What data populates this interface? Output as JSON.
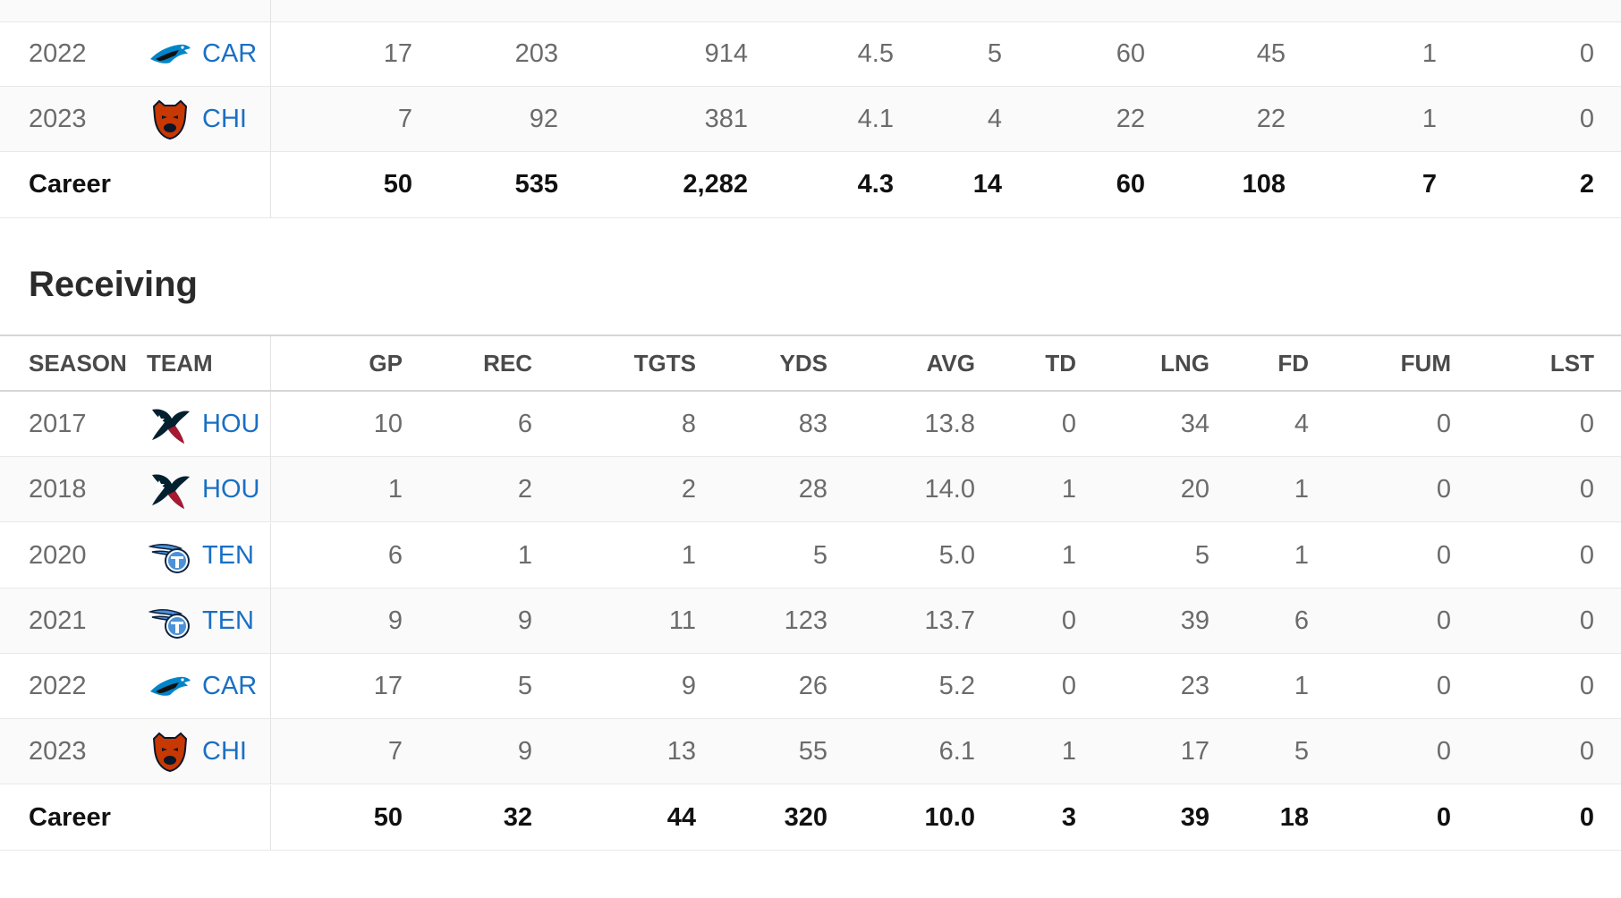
{
  "rushing": {
    "rows": [
      {
        "season": "2022",
        "team": "CAR",
        "logo": "panthers-logo",
        "stats": [
          "17",
          "203",
          "914",
          "4.5",
          "5",
          "60",
          "45",
          "1",
          "0"
        ]
      },
      {
        "season": "2023",
        "team": "CHI",
        "logo": "bears-logo",
        "stats": [
          "7",
          "92",
          "381",
          "4.1",
          "4",
          "22",
          "22",
          "1",
          "0"
        ]
      }
    ],
    "career": {
      "label": "Career",
      "stats": [
        "50",
        "535",
        "2,282",
        "4.3",
        "14",
        "60",
        "108",
        "7",
        "2"
      ]
    }
  },
  "receiving": {
    "title": "Receiving",
    "headers": {
      "season": "SEASON",
      "team": "TEAM",
      "cols": [
        "GP",
        "REC",
        "TGTS",
        "YDS",
        "AVG",
        "TD",
        "LNG",
        "FD",
        "FUM",
        "LST"
      ]
    },
    "rows": [
      {
        "season": "2017",
        "team": "HOU",
        "logo": "texans-logo",
        "stats": [
          "10",
          "6",
          "8",
          "83",
          "13.8",
          "0",
          "34",
          "4",
          "0",
          "0"
        ]
      },
      {
        "season": "2018",
        "team": "HOU",
        "logo": "texans-logo",
        "stats": [
          "1",
          "2",
          "2",
          "28",
          "14.0",
          "1",
          "20",
          "1",
          "0",
          "0"
        ]
      },
      {
        "season": "2020",
        "team": "TEN",
        "logo": "titans-logo",
        "stats": [
          "6",
          "1",
          "1",
          "5",
          "5.0",
          "1",
          "5",
          "1",
          "0",
          "0"
        ]
      },
      {
        "season": "2021",
        "team": "TEN",
        "logo": "titans-logo",
        "stats": [
          "9",
          "9",
          "11",
          "123",
          "13.7",
          "0",
          "39",
          "6",
          "0",
          "0"
        ]
      },
      {
        "season": "2022",
        "team": "CAR",
        "logo": "panthers-logo",
        "stats": [
          "17",
          "5",
          "9",
          "26",
          "5.2",
          "0",
          "23",
          "1",
          "0",
          "0"
        ]
      },
      {
        "season": "2023",
        "team": "CHI",
        "logo": "bears-logo",
        "stats": [
          "7",
          "9",
          "13",
          "55",
          "6.1",
          "1",
          "17",
          "5",
          "0",
          "0"
        ]
      }
    ],
    "career": {
      "label": "Career",
      "stats": [
        "50",
        "32",
        "44",
        "320",
        "10.0",
        "3",
        "39",
        "18",
        "0",
        "0"
      ]
    }
  },
  "colors": {
    "link": "#1a6fc4",
    "muted": "#6b6b6b",
    "texans_navy": "#03202f",
    "texans_red": "#a71930",
    "titans_navy": "#0c2340",
    "titans_blue": "#4b92db",
    "panthers_blue": "#0085ca",
    "bears_orange": "#c83803",
    "bears_navy": "#0b162a"
  }
}
